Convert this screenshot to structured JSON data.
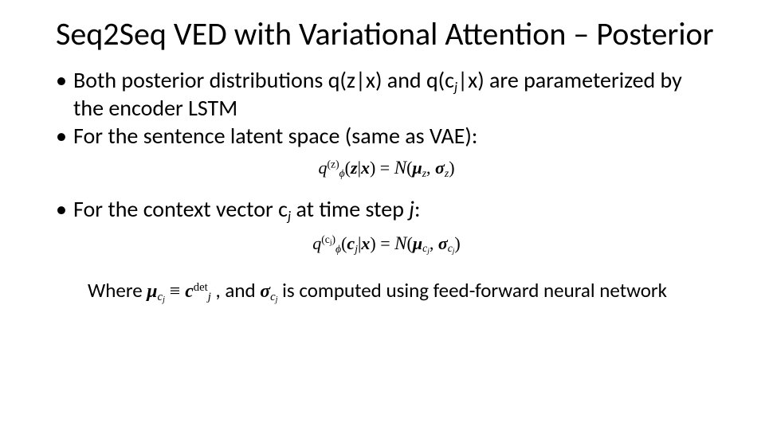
{
  "title": "Seq2Seq VED with Variational Attention – Posterior",
  "bullets": {
    "b1_pre": "Both posterior distributions q(z|x) and q(c",
    "b1_sub": "j",
    "b1_post": "|x) are parameterized by the encoder LSTM",
    "b2": "For the sentence latent space (same as VAE):",
    "b3_pre": "For the context vector c",
    "b3_sub": "j",
    "b3_mid": " at time step ",
    "b3_j": "j",
    "b3_post": ":"
  },
  "eq1": {
    "q": "q",
    "phi": "ϕ",
    "zsup": "(z)",
    "zarg": "z",
    "xarg": "x",
    "eq": " = ",
    "N": "N",
    "mu": "μ",
    "sigma": "σ",
    "zsub": "z"
  },
  "eq2": {
    "q": "q",
    "phi": "ϕ",
    "csup_l": "(c",
    "csup_j": "j",
    "csup_r": ")",
    "carg": "c",
    "jarg": "j",
    "xarg": "x",
    "eq": " = ",
    "N": "N",
    "mu": "μ",
    "sigma": "σ",
    "cj_c": "c",
    "cj_j": "j"
  },
  "where": {
    "pre": "Where ",
    "mu": "μ",
    "c": "c",
    "j": "j",
    "equiv": " ≡ ",
    "cbold": "c",
    "det": "det",
    "mid": " , and ",
    "sigma": "σ",
    "post": " is computed using feed-forward neural network"
  },
  "style": {
    "bg": "#ffffff",
    "text": "#000000",
    "title_fontsize": 40,
    "body_fontsize": 28,
    "eq_fontsize": 22,
    "where_fontsize": 25,
    "font_family": "Calibri",
    "math_font": "Cambria Math"
  }
}
